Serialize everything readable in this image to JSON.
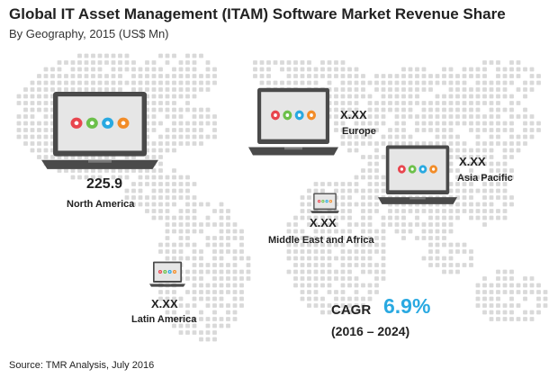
{
  "chart_data": {
    "type": "map",
    "title": "Global IT Asset Management (ITAM) Software Market Revenue Share",
    "subtitle": "By Geography, 2015 (US$ Mn)",
    "regions": [
      {
        "name": "North America",
        "value": "225.9"
      },
      {
        "name": "Europe",
        "value": "X.XX"
      },
      {
        "name": "Asia Pacific",
        "value": "X.XX"
      },
      {
        "name": "Middle East and Africa",
        "value": "X.XX"
      },
      {
        "name": "Latin America",
        "value": "X.XX"
      }
    ],
    "cagr": {
      "label": "CAGR",
      "value": "6.9%",
      "period": "(2016 – 2024)"
    },
    "source": "Source: TMR Analysis, July 2016"
  },
  "colors": {
    "map_dots": "#d9d9d9",
    "laptop_body": "#4a4a4a",
    "screen": "#e6e6e6",
    "accent": "#29a9e1",
    "app_icons": [
      "#e8454e",
      "#6cc04a",
      "#29a9e1",
      "#f28c28"
    ]
  }
}
